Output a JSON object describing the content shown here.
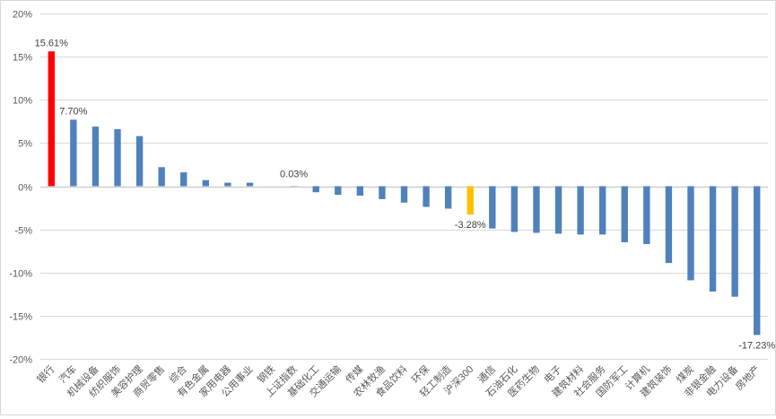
{
  "chart_data": {
    "type": "bar",
    "title": "",
    "xlabel": "",
    "ylabel": "",
    "ylim": [
      -20,
      20
    ],
    "yticks": [
      20,
      15,
      10,
      5,
      0,
      -5,
      -10,
      -15,
      -20
    ],
    "ytick_labels": [
      "20%",
      "15%",
      "10%",
      "5%",
      "0%",
      "-5%",
      "-10%",
      "-15%",
      "-20%"
    ],
    "grid": true,
    "legend": "none",
    "categories": [
      "银行",
      "汽车",
      "机械设备",
      "纺织服饰",
      "美容护理",
      "商贸零售",
      "综合",
      "有色金属",
      "家用电器",
      "公用事业",
      "钢铁",
      "上证指数",
      "基础化工",
      "交通运输",
      "传媒",
      "农林牧渔",
      "食品饮料",
      "环保",
      "轻工制造",
      "沪深300",
      "通信",
      "石油石化",
      "医药生物",
      "电子",
      "建筑材料",
      "社会服务",
      "国防军工",
      "计算机",
      "建筑装饰",
      "煤炭",
      "非银金融",
      "电力设备",
      "房地产"
    ],
    "values": [
      15.61,
      7.7,
      6.9,
      6.6,
      5.8,
      2.2,
      1.6,
      0.7,
      0.4,
      0.4,
      0.0,
      0.03,
      -0.7,
      -1.0,
      -1.1,
      -1.5,
      -1.9,
      -2.4,
      -2.6,
      -3.28,
      -4.9,
      -5.3,
      -5.4,
      -5.5,
      -5.6,
      -5.6,
      -6.5,
      -6.7,
      -8.9,
      -10.9,
      -12.2,
      -12.8,
      -17.23
    ],
    "bar_colors": [
      "#ff0000",
      "#4f81bd",
      "#4f81bd",
      "#4f81bd",
      "#4f81bd",
      "#4f81bd",
      "#4f81bd",
      "#4f81bd",
      "#4f81bd",
      "#4f81bd",
      "#4f81bd",
      "#4f81bd",
      "#4f81bd",
      "#4f81bd",
      "#4f81bd",
      "#4f81bd",
      "#4f81bd",
      "#4f81bd",
      "#4f81bd",
      "#ffc000",
      "#4f81bd",
      "#4f81bd",
      "#4f81bd",
      "#4f81bd",
      "#4f81bd",
      "#4f81bd",
      "#4f81bd",
      "#4f81bd",
      "#4f81bd",
      "#4f81bd",
      "#4f81bd",
      "#4f81bd",
      "#4f81bd"
    ],
    "data_labels": [
      {
        "index": 0,
        "text": "15.61%"
      },
      {
        "index": 1,
        "text": "7.70%"
      },
      {
        "index": 11,
        "text": "0.03%"
      },
      {
        "index": 19,
        "text": "-3.28%"
      },
      {
        "index": 32,
        "text": "-17.23%"
      }
    ]
  }
}
